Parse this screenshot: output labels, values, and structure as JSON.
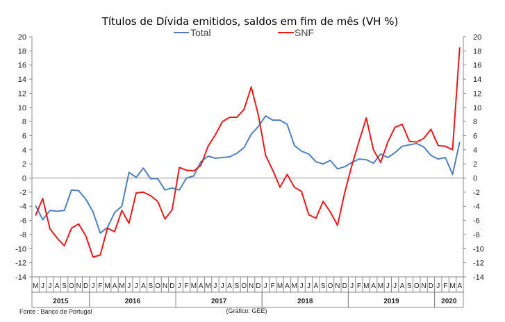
{
  "chart_data": {
    "type": "line",
    "title": "Títulos de Dívida emitidos, saldos em fim de mês  (VH %)",
    "ylim": [
      -14,
      20
    ],
    "yticks": [
      -14,
      -12,
      -10,
      -8,
      -6,
      -4,
      -2,
      0,
      2,
      4,
      6,
      8,
      10,
      12,
      14,
      16,
      18,
      20
    ],
    "months": [
      "M",
      "J",
      "J",
      "A",
      "S",
      "O",
      "N",
      "D",
      "J",
      "F",
      "M",
      "A",
      "M",
      "J",
      "J",
      "A",
      "S",
      "O",
      "N",
      "D",
      "J",
      "F",
      "M",
      "A",
      "M",
      "J",
      "J",
      "A",
      "S",
      "O",
      "N",
      "D",
      "J",
      "F",
      "M",
      "A",
      "M",
      "J",
      "J",
      "A",
      "S",
      "O",
      "N",
      "D",
      "J",
      "F",
      "M",
      "A",
      "M",
      "J",
      "J",
      "A",
      "S",
      "O",
      "N",
      "D",
      "J",
      "F",
      "M",
      "A"
    ],
    "years": [
      {
        "label": "2015",
        "start": 0,
        "end": 7
      },
      {
        "label": "2016",
        "start": 8,
        "end": 19
      },
      {
        "label": "2017",
        "start": 20,
        "end": 31
      },
      {
        "label": "2018",
        "start": 32,
        "end": 43
      },
      {
        "label": "2019",
        "start": 44,
        "end": 55
      },
      {
        "label": "2020",
        "start": 56,
        "end": 59
      }
    ],
    "series": [
      {
        "name": "Total",
        "color": "#4f81bd",
        "values": [
          -3.9,
          -5.9,
          -4.6,
          -4.7,
          -4.6,
          -1.7,
          -1.8,
          -3.0,
          -4.8,
          -7.8,
          -7.0,
          -4.9,
          -4.0,
          0.8,
          0.1,
          1.4,
          -0.1,
          -0.1,
          -1.7,
          -1.4,
          -1.7,
          0.0,
          0.3,
          2.3,
          3.1,
          2.8,
          2.9,
          3.0,
          3.5,
          4.3,
          6.2,
          7.3,
          8.8,
          8.2,
          8.2,
          7.6,
          4.6,
          3.8,
          3.4,
          2.3,
          2.0,
          2.5,
          1.3,
          1.6,
          2.2,
          2.7,
          2.6,
          2.1,
          3.4,
          2.9,
          3.6,
          4.5,
          4.7,
          4.9,
          4.4,
          3.2,
          2.7,
          2.9,
          0.5,
          5.1
        ]
      },
      {
        "name": "SNF",
        "color": "#e8191b",
        "values": [
          -5.3,
          -2.9,
          -7.2,
          -8.5,
          -9.6,
          -7.1,
          -6.5,
          -8.2,
          -11.2,
          -10.9,
          -7.1,
          -7.6,
          -4.6,
          -6.4,
          -2.1,
          -2.0,
          -2.5,
          -3.3,
          -5.8,
          -4.5,
          1.5,
          1.1,
          1.0,
          1.8,
          4.5,
          6.1,
          8.0,
          8.6,
          8.6,
          9.7,
          12.9,
          8.9,
          3.2,
          1.1,
          -1.3,
          0.5,
          -1.3,
          -1.9,
          -5.2,
          -5.7,
          -3.3,
          -4.8,
          -6.7,
          -2.1,
          1.8,
          5.2,
          8.5,
          4.0,
          2.2,
          5.1,
          7.2,
          7.6,
          5.2,
          5.1,
          5.6,
          6.9,
          4.6,
          4.5,
          4.0,
          18.5
        ]
      }
    ],
    "legend": [
      "Total",
      "SNF"
    ]
  },
  "footer": {
    "source": "Fonte : Banco de Portugal",
    "credit": "(Gráfico: GEE)"
  }
}
